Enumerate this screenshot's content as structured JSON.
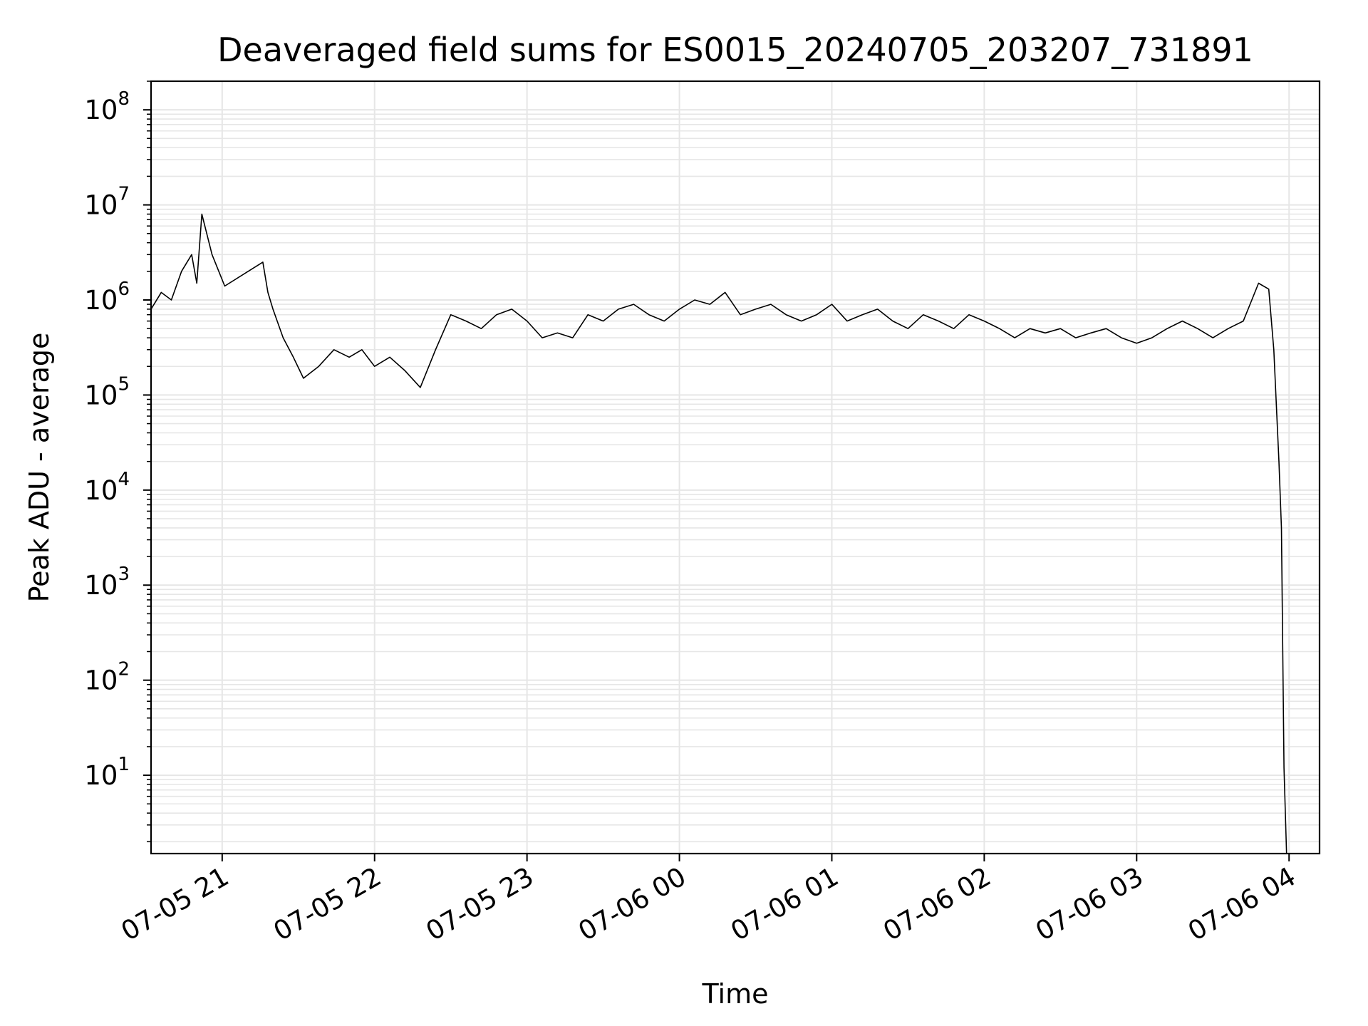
{
  "chart_data": {
    "type": "line",
    "title": "Deaveraged field sums for ES0015_20240705_203207_731891",
    "xlabel": "Time",
    "ylabel": "Peak ADU - average",
    "y_scale": "log",
    "grid": true,
    "line_color": "#000000",
    "grid_color": "#e6e6e6",
    "x_ticks": [
      {
        "label": "07-05 21",
        "time": "2024-07-05 21:00"
      },
      {
        "label": "07-05 22",
        "time": "2024-07-05 22:00"
      },
      {
        "label": "07-05 23",
        "time": "2024-07-05 23:00"
      },
      {
        "label": "07-06 00",
        "time": "2024-07-06 00:00"
      },
      {
        "label": "07-06 01",
        "time": "2024-07-06 01:00"
      },
      {
        "label": "07-06 02",
        "time": "2024-07-06 02:00"
      },
      {
        "label": "07-06 03",
        "time": "2024-07-06 03:00"
      },
      {
        "label": "07-06 04",
        "time": "2024-07-06 04:00"
      }
    ],
    "y_ticks": [
      {
        "base": "10",
        "exp": "1",
        "value": 10
      },
      {
        "base": "10",
        "exp": "2",
        "value": 100
      },
      {
        "base": "10",
        "exp": "3",
        "value": 1000
      },
      {
        "base": "10",
        "exp": "4",
        "value": 10000
      },
      {
        "base": "10",
        "exp": "5",
        "value": 100000
      },
      {
        "base": "10",
        "exp": "6",
        "value": 1000000
      },
      {
        "base": "10",
        "exp": "7",
        "value": 10000000
      },
      {
        "base": "10",
        "exp": "8",
        "value": 100000000
      }
    ],
    "xlim": [
      "2024-07-05 20:32",
      "2024-07-06 04:12"
    ],
    "ylim": [
      1.5,
      200000000
    ],
    "series": [
      {
        "x": [
          "2024-07-05 20:32",
          "2024-07-05 20:36",
          "2024-07-05 20:40",
          "2024-07-05 20:44",
          "2024-07-05 20:48",
          "2024-07-05 20:50",
          "2024-07-05 20:52",
          "2024-07-05 20:56",
          "2024-07-05 21:01",
          "2024-07-05 21:16",
          "2024-07-05 21:18",
          "2024-07-05 21:20",
          "2024-07-05 21:24",
          "2024-07-05 21:28",
          "2024-07-05 21:32",
          "2024-07-05 21:38",
          "2024-07-05 21:44",
          "2024-07-05 21:50",
          "2024-07-05 21:55",
          "2024-07-05 22:00",
          "2024-07-05 22:06",
          "2024-07-05 22:12",
          "2024-07-05 22:18",
          "2024-07-05 22:24",
          "2024-07-05 22:30",
          "2024-07-05 22:36",
          "2024-07-05 22:42",
          "2024-07-05 22:48",
          "2024-07-05 22:54",
          "2024-07-05 23:00",
          "2024-07-05 23:06",
          "2024-07-05 23:12",
          "2024-07-05 23:18",
          "2024-07-05 23:24",
          "2024-07-05 23:30",
          "2024-07-05 23:36",
          "2024-07-05 23:42",
          "2024-07-05 23:48",
          "2024-07-05 23:54",
          "2024-07-06 00:00",
          "2024-07-06 00:06",
          "2024-07-06 00:12",
          "2024-07-06 00:18",
          "2024-07-06 00:24",
          "2024-07-06 00:30",
          "2024-07-06 00:36",
          "2024-07-06 00:42",
          "2024-07-06 00:48",
          "2024-07-06 00:54",
          "2024-07-06 01:00",
          "2024-07-06 01:06",
          "2024-07-06 01:12",
          "2024-07-06 01:18",
          "2024-07-06 01:24",
          "2024-07-06 01:30",
          "2024-07-06 01:36",
          "2024-07-06 01:42",
          "2024-07-06 01:48",
          "2024-07-06 01:54",
          "2024-07-06 02:00",
          "2024-07-06 02:06",
          "2024-07-06 02:12",
          "2024-07-06 02:18",
          "2024-07-06 02:24",
          "2024-07-06 02:30",
          "2024-07-06 02:36",
          "2024-07-06 02:42",
          "2024-07-06 02:48",
          "2024-07-06 02:54",
          "2024-07-06 03:00",
          "2024-07-06 03:06",
          "2024-07-06 03:12",
          "2024-07-06 03:18",
          "2024-07-06 03:24",
          "2024-07-06 03:30",
          "2024-07-06 03:36",
          "2024-07-06 03:42",
          "2024-07-06 03:48",
          "2024-07-06 03:52",
          "2024-07-06 03:54",
          "2024-07-06 03:56",
          "2024-07-06 03:57",
          "2024-07-06 03:58",
          "2024-07-06 03:59"
        ],
        "y": [
          800000,
          1200000,
          1000000,
          2000000,
          3000000,
          1500000,
          8000000,
          3000000,
          1400000,
          2500000,
          1200000,
          800000,
          400000,
          250000,
          150000,
          200000,
          300000,
          250000,
          300000,
          200000,
          250000,
          180000,
          120000,
          300000,
          700000,
          600000,
          500000,
          700000,
          800000,
          600000,
          400000,
          450000,
          400000,
          700000,
          600000,
          800000,
          900000,
          700000,
          600000,
          800000,
          1000000,
          900000,
          1200000,
          700000,
          800000,
          900000,
          700000,
          600000,
          700000,
          900000,
          600000,
          700000,
          800000,
          600000,
          500000,
          700000,
          600000,
          500000,
          700000,
          600000,
          500000,
          400000,
          500000,
          450000,
          500000,
          400000,
          450000,
          500000,
          400000,
          350000,
          400000,
          500000,
          600000,
          500000,
          400000,
          500000,
          600000,
          1500000,
          1300000,
          300000,
          20000,
          4000,
          12,
          1.5
        ]
      }
    ]
  }
}
